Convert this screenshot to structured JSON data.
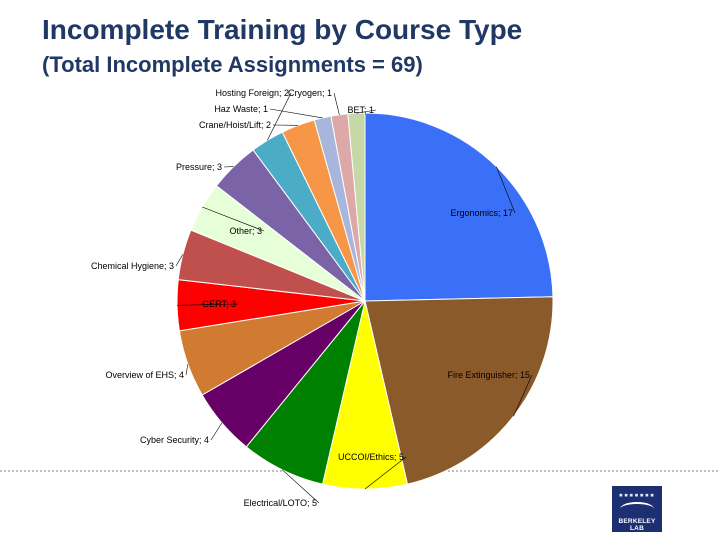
{
  "chart_data": {
    "type": "pie",
    "title": "Incomplete Training by Course Type",
    "subtitle": "(Total Incomplete Assignments = 69)",
    "slices": [
      {
        "label": "Ergonomics",
        "value": 17,
        "color": "#3a6ff7"
      },
      {
        "label": "Fire Extinguisher",
        "value": 15,
        "color": "#8b5a2b"
      },
      {
        "label": "UCCOI/Ethics",
        "value": 5,
        "color": "#ffff00"
      },
      {
        "label": "Electrical/LOTO",
        "value": 5,
        "color": "#008000"
      },
      {
        "label": "Cyber Security",
        "value": 4,
        "color": "#660066"
      },
      {
        "label": "Overview of EHS",
        "value": 4,
        "color": "#d07a32"
      },
      {
        "label": "GERT",
        "value": 3,
        "color": "#ff0000"
      },
      {
        "label": "Chemical Hygiene",
        "value": 3,
        "color": "#c0504d"
      },
      {
        "label": "Other",
        "value": 3,
        "color": "#e6ffd9"
      },
      {
        "label": "Pressure",
        "value": 3,
        "color": "#7b63a8"
      },
      {
        "label": "Hosting Foreign",
        "value": 2,
        "color": "#4aacc6"
      },
      {
        "label": "Crane/Hoist/Lift",
        "value": 2,
        "color": "#f79646"
      },
      {
        "label": "Haz Waste",
        "value": 1,
        "color": "#a9b6dc"
      },
      {
        "label": "Cryogen",
        "value": 1,
        "color": "#dca9a8"
      },
      {
        "label": "BET",
        "value": 1,
        "color": "#c5d8a6"
      }
    ],
    "legend": "none"
  },
  "logo": {
    "dots": "▪▪▪▪▪▪▪",
    "text": "BERKELEY LAB"
  }
}
